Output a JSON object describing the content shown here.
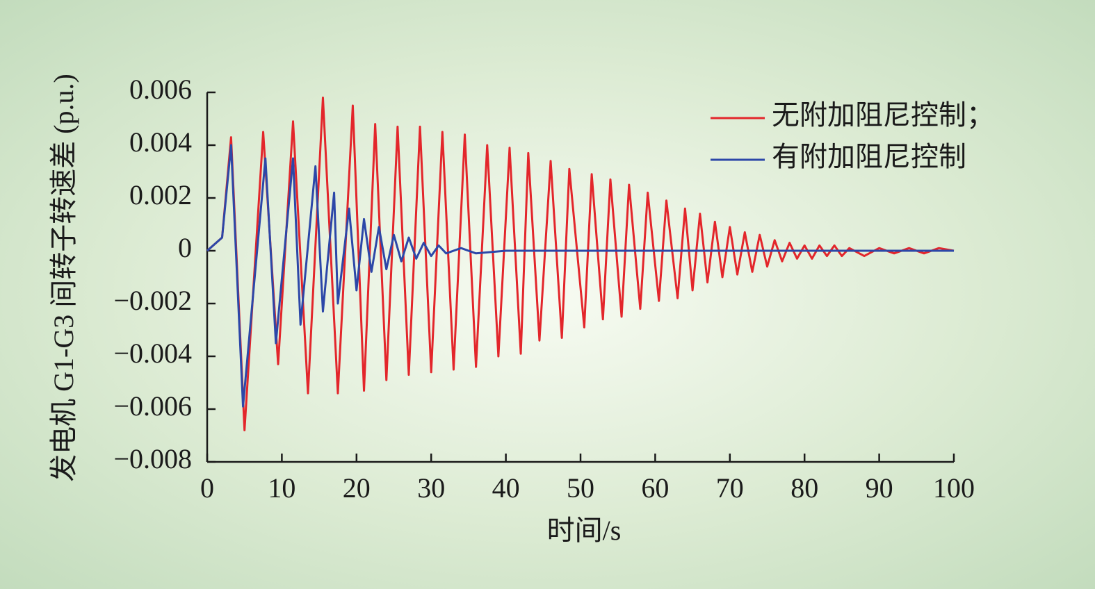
{
  "chart_data": {
    "type": "line",
    "xlabel": "时间/s",
    "ylabel": "发电机 G1-G3 间转子转速差 (p.u.)",
    "xlim": [
      0,
      100
    ],
    "xticks": [
      0,
      10,
      20,
      30,
      40,
      50,
      60,
      70,
      80,
      90,
      100
    ],
    "ylim": [
      -0.008,
      0.006
    ],
    "yticks": [
      {
        "value": -0.008,
        "label": "−0.008"
      },
      {
        "value": -0.006,
        "label": "−0.006"
      },
      {
        "value": -0.004,
        "label": "−0.004"
      },
      {
        "value": -0.002,
        "label": "−0.002"
      },
      0,
      0.002,
      0.004,
      0.006
    ],
    "legend": "top-right",
    "series": [
      {
        "name": "无附加阻尼控制；",
        "color": "#e3262b",
        "x": [
          0,
          2,
          3.2,
          5,
          7.5,
          9.5,
          11.5,
          13.5,
          15.5,
          17.5,
          19.5,
          21,
          22.5,
          24,
          25.5,
          27,
          28.5,
          30,
          31.5,
          33,
          34.5,
          36,
          37.5,
          39,
          40.5,
          42,
          43,
          44.5,
          46,
          47.5,
          48.5,
          50.5,
          51.5,
          53,
          54,
          55.5,
          56.5,
          58,
          59,
          60.5,
          61.5,
          63,
          64,
          65,
          66,
          67,
          68,
          69,
          70,
          71,
          72,
          73,
          74,
          75,
          76,
          77,
          78,
          79,
          80,
          81,
          82,
          83,
          84,
          85,
          86,
          88,
          90,
          92,
          94,
          96,
          98,
          100
        ],
        "values": [
          0,
          0.0005,
          0.0043,
          -0.0068,
          0.0045,
          -0.0043,
          0.0049,
          -0.0054,
          0.0058,
          -0.0054,
          0.0055,
          -0.0053,
          0.0048,
          -0.0049,
          0.0047,
          -0.0047,
          0.0047,
          -0.0046,
          0.0045,
          -0.0045,
          0.0044,
          -0.0044,
          0.004,
          -0.004,
          0.0039,
          -0.0039,
          0.0037,
          -0.0034,
          0.0034,
          -0.0033,
          0.0031,
          -0.0029,
          0.0029,
          -0.0026,
          0.0027,
          -0.0025,
          0.0025,
          -0.0022,
          0.0022,
          -0.0019,
          0.0019,
          -0.0018,
          0.0016,
          -0.0015,
          0.0014,
          -0.0012,
          0.0011,
          -0.001,
          0.0009,
          -0.0009,
          0.0007,
          -0.0008,
          0.0006,
          -0.0006,
          0.0004,
          -0.0004,
          0.0003,
          -0.0003,
          0.0002,
          -0.0003,
          0.0002,
          -0.0002,
          0.0002,
          -0.0002,
          0.0001,
          -0.0002,
          0.0001,
          -0.0001,
          0.0001,
          -0.0001,
          0.0001,
          0
        ]
      },
      {
        "name": "有附加阻尼控制",
        "color": "#2c47a8",
        "x": [
          0,
          2,
          3.2,
          4.8,
          7.8,
          9.2,
          11.5,
          12.5,
          14.5,
          15.5,
          17,
          17.5,
          19,
          20,
          21,
          22,
          23,
          24,
          25,
          26,
          27,
          28,
          29,
          30,
          31,
          32,
          34,
          36,
          40,
          100
        ],
        "values": [
          0,
          0.0005,
          0.004,
          -0.0059,
          0.0035,
          -0.0035,
          0.0035,
          -0.0028,
          0.0032,
          -0.0023,
          0.0022,
          -0.002,
          0.0016,
          -0.0015,
          0.0012,
          -0.0008,
          0.0009,
          -0.0007,
          0.0006,
          -0.0004,
          0.0005,
          -0.0003,
          0.0003,
          -0.0002,
          0.0002,
          -0.0001,
          0.0001,
          -0.0001,
          0,
          0
        ]
      }
    ]
  }
}
